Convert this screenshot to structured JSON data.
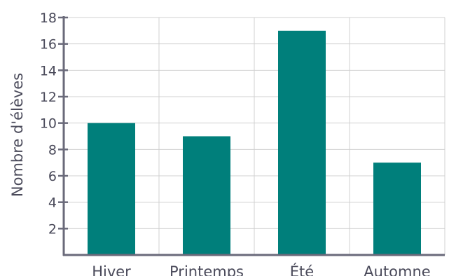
{
  "chart_data": {
    "type": "bar",
    "title": "",
    "xlabel": "",
    "ylabel": "Nombre d'élèves",
    "categories": [
      "Hiver",
      "Printemps",
      "Été",
      "Automne"
    ],
    "values": [
      10,
      9,
      17,
      7
    ],
    "ylim": [
      0,
      18
    ],
    "yticks": [
      2,
      4,
      6,
      8,
      10,
      12,
      14,
      16,
      18
    ],
    "grid": true,
    "legend": "none",
    "colors": {
      "bar": "#007f7b",
      "axis": "#6a6a7a",
      "grid": "#d0d0d0",
      "text": "#4a4a5a"
    }
  }
}
